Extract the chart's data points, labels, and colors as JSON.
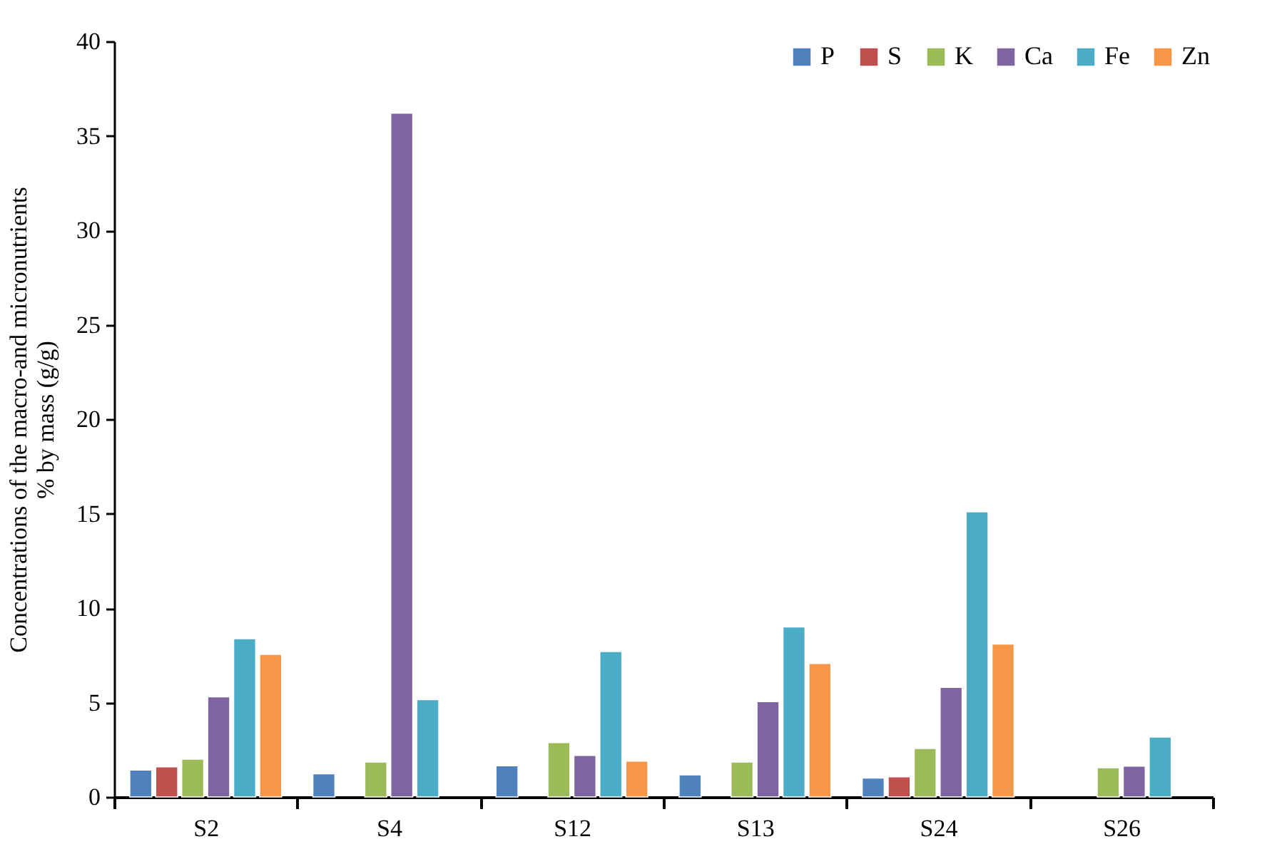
{
  "chart_data": {
    "type": "bar",
    "ylabel": "Concentrations of the macro-and micronutrients\n% by mass (g/g)",
    "categories": [
      "S2",
      "S4",
      "S12",
      "S13",
      "S24",
      "S26"
    ],
    "series": [
      {
        "name": "P",
        "color": "#4f81bd",
        "values": [
          1.43,
          1.23,
          1.65,
          1.17,
          1.0,
          null
        ]
      },
      {
        "name": "S",
        "color": "#c0504d",
        "values": [
          1.6,
          null,
          null,
          null,
          1.07,
          null
        ]
      },
      {
        "name": "K",
        "color": "#9bbb59",
        "values": [
          2.0,
          1.85,
          2.88,
          1.85,
          2.57,
          1.55
        ]
      },
      {
        "name": "Ca",
        "color": "#8064a2",
        "values": [
          5.3,
          36.2,
          2.2,
          5.05,
          5.8,
          1.63
        ]
      },
      {
        "name": "Fe",
        "color": "#4bacc6",
        "values": [
          8.38,
          5.15,
          7.7,
          9.0,
          15.1,
          3.17
        ]
      },
      {
        "name": "Zn",
        "color": "#f79646",
        "values": [
          7.55,
          null,
          1.9,
          7.07,
          8.1,
          null
        ]
      }
    ],
    "ylim": [
      0,
      40
    ],
    "yticks": [
      0,
      5,
      10,
      15,
      20,
      25,
      30,
      35,
      40
    ],
    "grid": false,
    "legend": "top right"
  }
}
